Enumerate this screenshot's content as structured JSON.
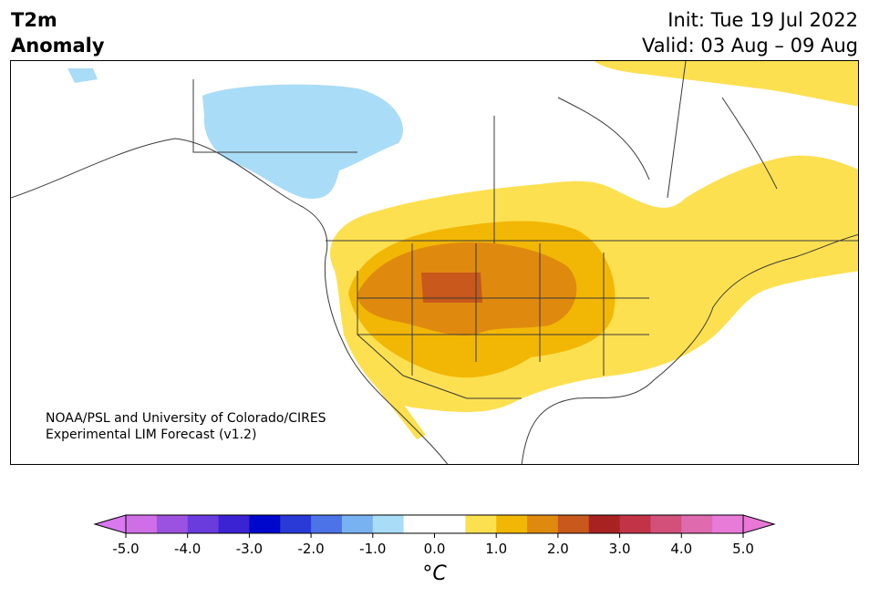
{
  "header": {
    "title_line1": "T2m",
    "title_line2": "Anomaly",
    "init_label": "Init: Tue 19 Jul 2022",
    "valid_label": "Valid: 03 Aug – 09 Aug"
  },
  "map": {
    "credit_line1": "NOAA/PSL and University of Colorado/CIRES",
    "credit_line2": "Experimental LIM Forecast (v1.2)",
    "colors": {
      "cool_1": "#a9dcf7",
      "warm_1": "#fde050",
      "warm_2": "#f2b705",
      "warm_3": "#df8a0e",
      "warm_4": "#c8581b",
      "border": "#3a3a3a"
    }
  },
  "colorbar": {
    "ticks": [
      "-5.0",
      "-4.0",
      "-3.0",
      "-2.0",
      "-1.0",
      "0.0",
      "1.0",
      "2.0",
      "3.0",
      "4.0",
      "5.0"
    ],
    "unit_label": "°C",
    "colors": [
      "#d06ee8",
      "#9b52e0",
      "#6a3cde",
      "#3b22d2",
      "#0007cd",
      "#2a3ad6",
      "#4c74e8",
      "#79b2f0",
      "#a9dcf7",
      "#ffffff",
      "#ffffff",
      "#fde050",
      "#f2b705",
      "#df8a0e",
      "#c8581b",
      "#a82222",
      "#c23348",
      "#d2507a",
      "#e06aae",
      "#e87ad8"
    ],
    "under_color": "#d879ee",
    "over_color": "#e877d6"
  }
}
